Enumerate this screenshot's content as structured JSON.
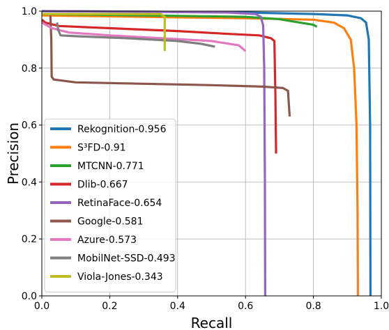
{
  "chart_data": {
    "type": "line",
    "title": "",
    "xlabel": "Recall",
    "ylabel": "Precision",
    "xlim": [
      0.0,
      1.0
    ],
    "ylim": [
      0.0,
      1.0
    ],
    "xticks": [
      "0.0",
      "0.2",
      "0.4",
      "0.6",
      "0.8",
      "1.0"
    ],
    "yticks": [
      "0.0",
      "0.2",
      "0.4",
      "0.6",
      "0.8",
      "1.0"
    ],
    "grid": true,
    "legend_position": "lower-left",
    "series": [
      {
        "name": "Rekognition-0.956",
        "color": "#1f77b4",
        "points": [
          [
            0.0,
            1.0
          ],
          [
            0.3,
            0.998
          ],
          [
            0.6,
            0.995
          ],
          [
            0.8,
            0.99
          ],
          [
            0.9,
            0.985
          ],
          [
            0.94,
            0.975
          ],
          [
            0.955,
            0.96
          ],
          [
            0.963,
            0.9
          ],
          [
            0.967,
            0.6
          ],
          [
            0.968,
            0.0
          ]
        ]
      },
      {
        "name": "S³FD-0.91",
        "color": "#ff7f0e",
        "points": [
          [
            0.0,
            0.985
          ],
          [
            0.3,
            0.98
          ],
          [
            0.6,
            0.975
          ],
          [
            0.8,
            0.97
          ],
          [
            0.86,
            0.96
          ],
          [
            0.89,
            0.94
          ],
          [
            0.91,
            0.9
          ],
          [
            0.92,
            0.8
          ],
          [
            0.927,
            0.6
          ],
          [
            0.93,
            0.3
          ],
          [
            0.931,
            0.0
          ]
        ]
      },
      {
        "name": "MTCNN-0.771",
        "color": "#2ca02c",
        "points": [
          [
            0.0,
            0.99
          ],
          [
            0.3,
            0.985
          ],
          [
            0.6,
            0.98
          ],
          [
            0.7,
            0.972
          ],
          [
            0.76,
            0.96
          ],
          [
            0.8,
            0.952
          ],
          [
            0.81,
            0.945
          ]
        ]
      },
      {
        "name": "Dlib-0.667",
        "color": "#d62728",
        "points": [
          [
            0.0,
            0.97
          ],
          [
            0.01,
            0.96
          ],
          [
            0.05,
            0.948
          ],
          [
            0.2,
            0.94
          ],
          [
            0.4,
            0.93
          ],
          [
            0.55,
            0.92
          ],
          [
            0.64,
            0.915
          ],
          [
            0.675,
            0.905
          ],
          [
            0.685,
            0.895
          ],
          [
            0.688,
            0.7
          ],
          [
            0.69,
            0.5
          ]
        ]
      },
      {
        "name": "RetinaFace-0.654",
        "color": "#9467bd",
        "points": [
          [
            0.0,
            1.0
          ],
          [
            0.3,
            0.998
          ],
          [
            0.55,
            0.995
          ],
          [
            0.63,
            0.99
          ],
          [
            0.645,
            0.98
          ],
          [
            0.652,
            0.95
          ],
          [
            0.655,
            0.8
          ],
          [
            0.657,
            0.4
          ],
          [
            0.658,
            0.0
          ]
        ]
      },
      {
        "name": "Google-0.581",
        "color": "#8c564b",
        "points": [
          [
            0.025,
            0.99
          ],
          [
            0.028,
            0.9
          ],
          [
            0.029,
            0.77
          ],
          [
            0.035,
            0.76
          ],
          [
            0.1,
            0.75
          ],
          [
            0.3,
            0.745
          ],
          [
            0.5,
            0.74
          ],
          [
            0.65,
            0.735
          ],
          [
            0.71,
            0.73
          ],
          [
            0.725,
            0.72
          ],
          [
            0.73,
            0.63
          ]
        ]
      },
      {
        "name": "Azure-0.573",
        "color": "#e377c2",
        "points": [
          [
            0.0,
            0.96
          ],
          [
            0.03,
            0.94
          ],
          [
            0.08,
            0.925
          ],
          [
            0.2,
            0.915
          ],
          [
            0.35,
            0.905
          ],
          [
            0.5,
            0.895
          ],
          [
            0.58,
            0.88
          ],
          [
            0.6,
            0.86
          ]
        ]
      },
      {
        "name": "MobilNet-SSD-0.493",
        "color": "#7f7f7f",
        "points": [
          [
            0.045,
            0.96
          ],
          [
            0.048,
            0.935
          ],
          [
            0.055,
            0.915
          ],
          [
            0.1,
            0.912
          ],
          [
            0.25,
            0.905
          ],
          [
            0.4,
            0.895
          ],
          [
            0.47,
            0.885
          ],
          [
            0.51,
            0.875
          ]
        ]
      },
      {
        "name": "Viola-Jones-0.343",
        "color": "#bcbd22",
        "points": [
          [
            0.0,
            0.99
          ],
          [
            0.2,
            0.99
          ],
          [
            0.35,
            0.99
          ],
          [
            0.362,
            0.98
          ],
          [
            0.362,
            0.86
          ]
        ]
      }
    ]
  }
}
